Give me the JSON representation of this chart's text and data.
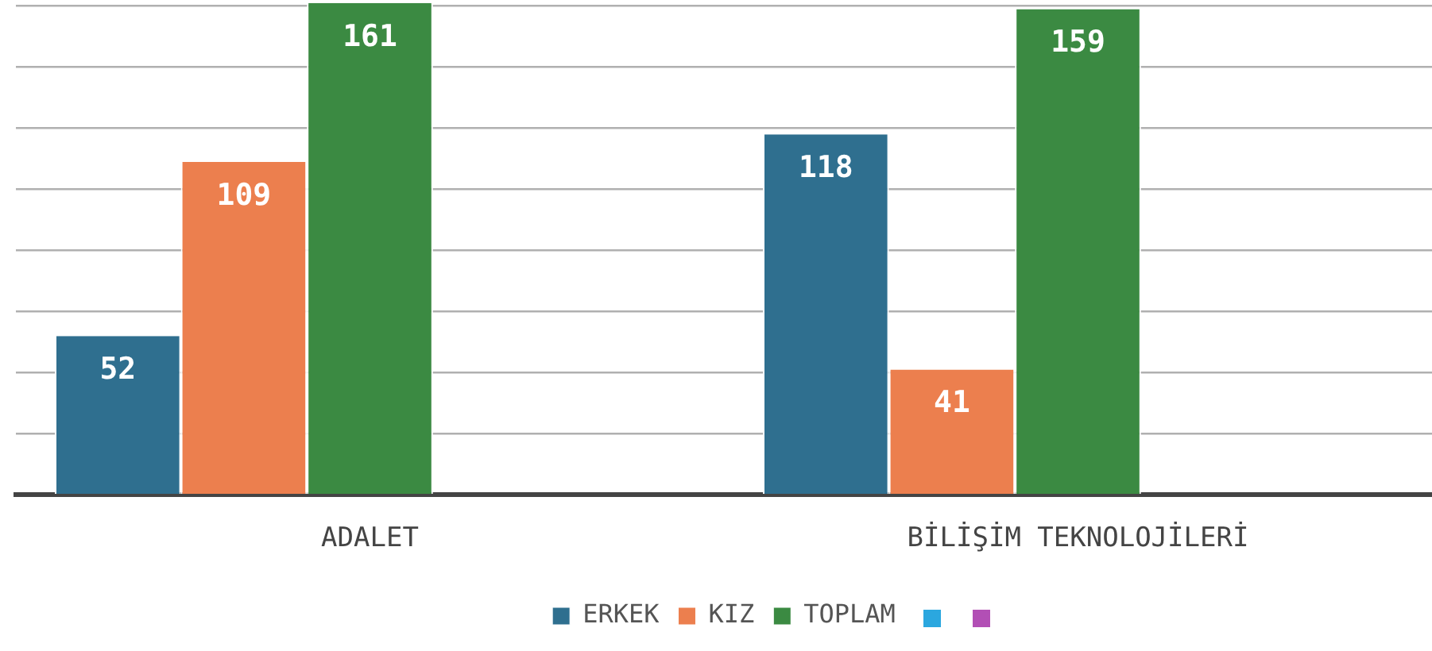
{
  "chart_data": {
    "type": "bar",
    "categories": [
      "ADALET",
      "BİLİŞİM TEKNOLOJİLERİ"
    ],
    "series": [
      {
        "name": "ERKEK",
        "color": "#2f6f8f",
        "values": [
          52,
          118
        ]
      },
      {
        "name": "KIZ",
        "color": "#ec7f4e",
        "values": [
          109,
          41
        ]
      },
      {
        "name": "TOPLAM",
        "color": "#3b8a42",
        "values": [
          161,
          159
        ]
      },
      {
        "color": "#2ba7df",
        "values": [
          null,
          null
        ]
      },
      {
        "color": "#b24fb5",
        "values": [
          null,
          null
        ]
      }
    ],
    "ylim": [
      0,
      162
    ],
    "yticks": [
      {
        "value": 0,
        "label": null
      },
      {
        "value": 20,
        "label": null
      },
      {
        "value": 40,
        "label": null
      },
      {
        "value": 60,
        "label": null
      },
      {
        "value": 80,
        "label": null
      },
      {
        "value": 100,
        "label": null
      },
      {
        "value": 120,
        "label": null
      },
      {
        "value": 140,
        "label": null
      },
      {
        "value": 160,
        "label": null
      }
    ],
    "tick_labels": "x",
    "grid": "y",
    "legend": "bottom",
    "data_labels": true
  }
}
